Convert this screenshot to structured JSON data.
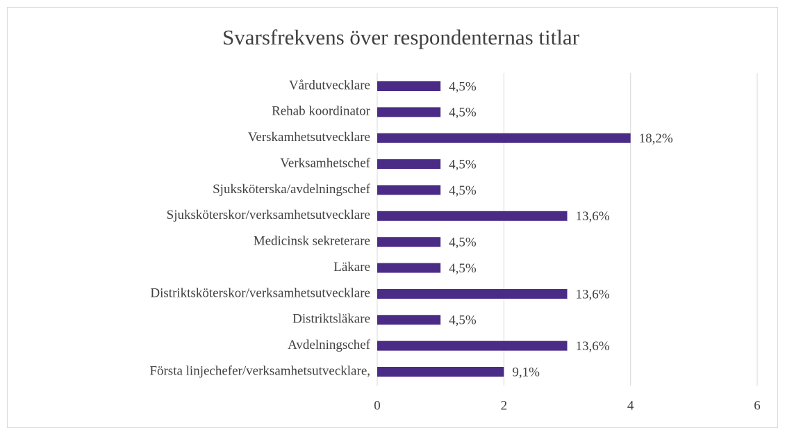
{
  "chart_data": {
    "type": "barh",
    "title": "Svarsfrekvens över respondenternas titlar",
    "categories": [
      "Vårdutvecklare",
      "Rehab koordinator",
      "Verskamhetsutvecklare",
      "Verksamhetschef",
      "Sjuksköterska/avdelningschef",
      "Sjuksköterskor/verksamhetsutvecklare",
      "Medicinsk sekreterare",
      "Läkare",
      "Distriktsköterskor/verksamhetsutvecklare",
      "Distriktsläkare",
      "Avdelningschef",
      "Första linjechefer/verksamhetsutvecklare,"
    ],
    "values": [
      1,
      1,
      4,
      1,
      1,
      3,
      1,
      1,
      3,
      1,
      3,
      2
    ],
    "value_labels": [
      "4,5%",
      "4,5%",
      "18,2%",
      "4,5%",
      "4,5%",
      "13,6%",
      "4,5%",
      "4,5%",
      "13,6%",
      "4,5%",
      "13,6%",
      "9,1%"
    ],
    "color": "#4a2c87",
    "xlim": [
      0,
      6
    ],
    "xticks": [
      0,
      2,
      4,
      6
    ],
    "grid": true
  }
}
